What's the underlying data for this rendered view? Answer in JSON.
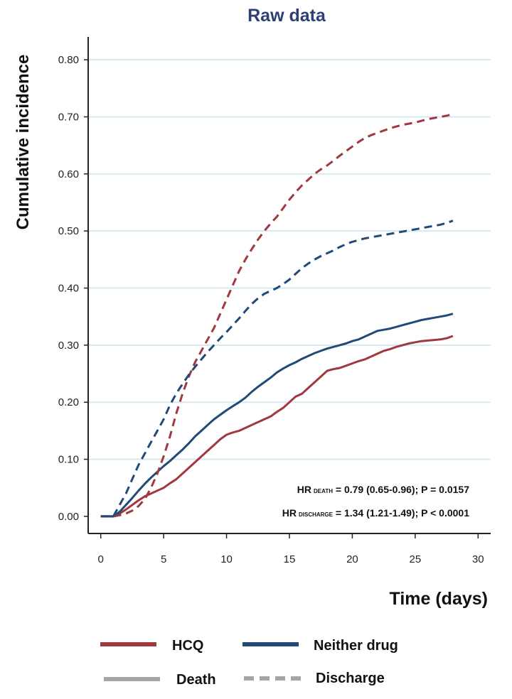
{
  "chart_data": {
    "type": "line",
    "title": "Raw data",
    "xlabel": "Time (days)",
    "ylabel": "Cumulative incidence",
    "xlim": [
      -1,
      31
    ],
    "ylim": [
      -0.03,
      0.84
    ],
    "x_ticks": [
      "0",
      "5",
      "10",
      "15",
      "20",
      "25",
      "30"
    ],
    "x_tick_values": [
      0,
      5,
      10,
      15,
      20,
      25,
      30
    ],
    "y_ticks": [
      "0.00",
      "0.10",
      "0.20",
      "0.30",
      "0.40",
      "0.50",
      "0.60",
      "0.70",
      "0.80"
    ],
    "y_tick_values": [
      0,
      0.1,
      0.2,
      0.3,
      0.4,
      0.5,
      0.6,
      0.7,
      0.8
    ],
    "grid": "horizontal",
    "colors": {
      "hcq": "#a0383f",
      "neither": "#204a78",
      "legend_gray": "#a6a6a6",
      "grid": "#d7e8ee"
    },
    "series": [
      {
        "group": "HCQ",
        "outcome": "Death",
        "style": "solid",
        "color": "#a0383f",
        "x": [
          0,
          1,
          1.5,
          2,
          2.5,
          3,
          3.5,
          4,
          4.5,
          5,
          5.5,
          6,
          6.5,
          7,
          7.5,
          8,
          8.5,
          9,
          9.5,
          10,
          10.5,
          11,
          11.5,
          12,
          12.5,
          13,
          13.5,
          14,
          14.5,
          15,
          15.5,
          16,
          16.5,
          17,
          17.5,
          18,
          18.5,
          19,
          19.5,
          20,
          20.5,
          21,
          21.5,
          22,
          22.5,
          23,
          23.5,
          24,
          24.5,
          25,
          25.5,
          26,
          26.5,
          27,
          27.5,
          28
        ],
        "y": [
          0,
          0,
          0.005,
          0.012,
          0.02,
          0.028,
          0.035,
          0.04,
          0.045,
          0.05,
          0.058,
          0.065,
          0.075,
          0.085,
          0.095,
          0.105,
          0.115,
          0.125,
          0.135,
          0.143,
          0.147,
          0.15,
          0.155,
          0.16,
          0.165,
          0.17,
          0.175,
          0.183,
          0.19,
          0.2,
          0.21,
          0.215,
          0.225,
          0.235,
          0.245,
          0.255,
          0.258,
          0.26,
          0.264,
          0.268,
          0.272,
          0.275,
          0.28,
          0.285,
          0.29,
          0.293,
          0.297,
          0.3,
          0.303,
          0.305,
          0.307,
          0.308,
          0.309,
          0.31,
          0.312,
          0.316
        ]
      },
      {
        "group": "Neither drug",
        "outcome": "Death",
        "style": "solid",
        "color": "#204a78",
        "x": [
          0,
          1,
          1.5,
          2,
          2.5,
          3,
          3.5,
          4,
          4.5,
          5,
          5.5,
          6,
          6.5,
          7,
          7.5,
          8,
          8.5,
          9,
          9.5,
          10,
          10.5,
          11,
          11.5,
          12,
          12.5,
          13,
          13.5,
          14,
          14.5,
          15,
          15.5,
          16,
          16.5,
          17,
          17.5,
          18,
          18.5,
          19,
          19.5,
          20,
          20.5,
          21,
          21.5,
          22,
          22.5,
          23,
          23.5,
          24,
          24.5,
          25,
          25.5,
          26,
          26.5,
          27,
          27.5,
          28
        ],
        "y": [
          0,
          0,
          0.008,
          0.02,
          0.032,
          0.045,
          0.057,
          0.068,
          0.078,
          0.088,
          0.097,
          0.107,
          0.117,
          0.128,
          0.14,
          0.15,
          0.16,
          0.17,
          0.178,
          0.186,
          0.193,
          0.2,
          0.208,
          0.218,
          0.227,
          0.235,
          0.243,
          0.252,
          0.259,
          0.265,
          0.27,
          0.276,
          0.281,
          0.286,
          0.29,
          0.294,
          0.297,
          0.3,
          0.303,
          0.307,
          0.31,
          0.315,
          0.32,
          0.325,
          0.327,
          0.329,
          0.332,
          0.335,
          0.338,
          0.341,
          0.344,
          0.346,
          0.348,
          0.35,
          0.352,
          0.355
        ]
      },
      {
        "group": "HCQ",
        "outcome": "Discharge",
        "style": "dashed",
        "color": "#a0383f",
        "x": [
          0,
          1,
          1.5,
          2,
          2.5,
          3,
          3.5,
          4,
          4.5,
          5,
          5.5,
          6,
          6.5,
          7,
          7.5,
          8,
          8.5,
          9,
          9.5,
          10,
          10.5,
          11,
          11.5,
          12,
          12.5,
          13,
          13.5,
          14,
          14.5,
          15,
          15.5,
          16,
          16.5,
          17,
          17.5,
          18,
          18.5,
          19,
          19.5,
          20,
          20.5,
          21,
          21.5,
          22,
          22.5,
          23,
          23.5,
          24,
          24.5,
          25,
          25.5,
          26,
          26.5,
          27,
          27.5,
          28
        ],
        "y": [
          0,
          0,
          0.002,
          0.005,
          0.01,
          0.018,
          0.03,
          0.05,
          0.075,
          0.105,
          0.14,
          0.18,
          0.215,
          0.245,
          0.27,
          0.29,
          0.31,
          0.33,
          0.355,
          0.38,
          0.405,
          0.43,
          0.45,
          0.468,
          0.485,
          0.5,
          0.513,
          0.525,
          0.54,
          0.555,
          0.568,
          0.58,
          0.59,
          0.6,
          0.608,
          0.615,
          0.623,
          0.632,
          0.64,
          0.648,
          0.656,
          0.663,
          0.668,
          0.672,
          0.676,
          0.68,
          0.683,
          0.686,
          0.688,
          0.69,
          0.693,
          0.696,
          0.698,
          0.7,
          0.702,
          0.705
        ]
      },
      {
        "group": "Neither drug",
        "outcome": "Discharge",
        "style": "dashed",
        "color": "#204a78",
        "x": [
          0,
          1,
          1.5,
          2,
          2.5,
          3,
          3.5,
          4,
          4.5,
          5,
          5.5,
          6,
          6.5,
          7,
          7.5,
          8,
          8.5,
          9,
          9.5,
          10,
          10.5,
          11,
          11.5,
          12,
          12.5,
          13,
          13.5,
          14,
          14.5,
          15,
          15.5,
          16,
          16.5,
          17,
          17.5,
          18,
          18.5,
          19,
          19.5,
          20,
          20.5,
          21,
          21.5,
          22,
          22.5,
          23,
          23.5,
          24,
          24.5,
          25,
          25.5,
          26,
          26.5,
          27,
          27.5,
          28
        ],
        "y": [
          0,
          0,
          0.02,
          0.04,
          0.065,
          0.09,
          0.11,
          0.13,
          0.15,
          0.17,
          0.195,
          0.215,
          0.232,
          0.248,
          0.262,
          0.275,
          0.288,
          0.3,
          0.312,
          0.323,
          0.335,
          0.347,
          0.36,
          0.372,
          0.382,
          0.39,
          0.395,
          0.4,
          0.407,
          0.415,
          0.425,
          0.435,
          0.443,
          0.45,
          0.456,
          0.461,
          0.466,
          0.472,
          0.477,
          0.481,
          0.484,
          0.487,
          0.489,
          0.491,
          0.493,
          0.495,
          0.497,
          0.499,
          0.501,
          0.503,
          0.505,
          0.507,
          0.509,
          0.511,
          0.514,
          0.518
        ]
      }
    ],
    "annotations": {
      "death": {
        "prefix": "HR",
        "sub": "DEATH",
        "rest": " = 0.79 (0.65-0.96); P = 0.0157"
      },
      "discharge": {
        "prefix": "HR",
        "sub": "DISCHARGE",
        "rest": " = 1.34 (1.21-1.49); P < 0.0001"
      }
    },
    "legend": {
      "placement": "bottom",
      "items": [
        {
          "label": "HCQ",
          "kind": "color",
          "color": "#a0383f"
        },
        {
          "label": "Neither drug",
          "kind": "color",
          "color": "#204a78"
        },
        {
          "label": "Death",
          "kind": "style",
          "style": "solid"
        },
        {
          "label": "Discharge",
          "kind": "style",
          "style": "dashed"
        }
      ]
    }
  }
}
